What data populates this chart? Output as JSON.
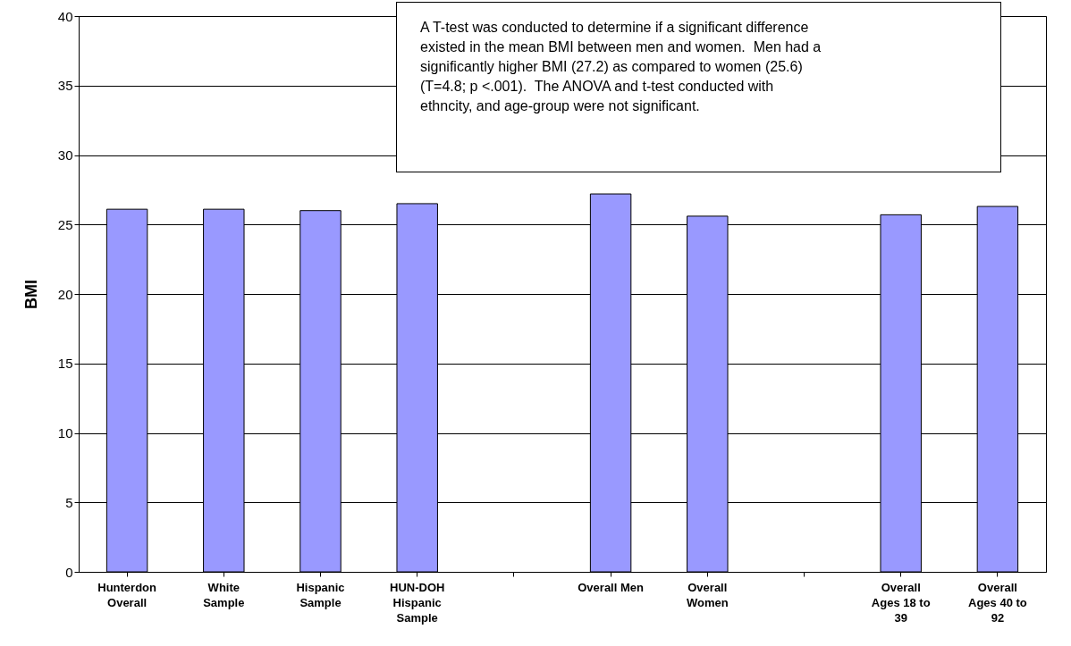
{
  "chart_data": {
    "type": "bar",
    "ylabel": "BMI",
    "categories": [
      "Hunterdon Overall",
      "White Sample",
      "Hispanic Sample",
      "HUN-DOH Hispanic Sample",
      null,
      "Overall Men",
      "Overall Women",
      null,
      "Overall Ages 18 to 39",
      "Overall Ages 40 to 92"
    ],
    "values": [
      26.1,
      26.1,
      26.0,
      26.5,
      null,
      27.2,
      25.6,
      null,
      25.7,
      26.3
    ],
    "color": "#9999ff",
    "ylim": [
      0,
      40
    ],
    "yticks": [
      0,
      5,
      10,
      15,
      20,
      25,
      30,
      35,
      40
    ],
    "grid": "y",
    "annotations": [
      "A T-test was conducted to determine if a significant difference existed in the mean BMI between men and women.  Men had a significantly higher BMI (27.2) as compared to women (25.6) (T=4.8; p <.001).  The ANOVA and t-test conducted with ethncity, and age-group were not significant."
    ]
  }
}
